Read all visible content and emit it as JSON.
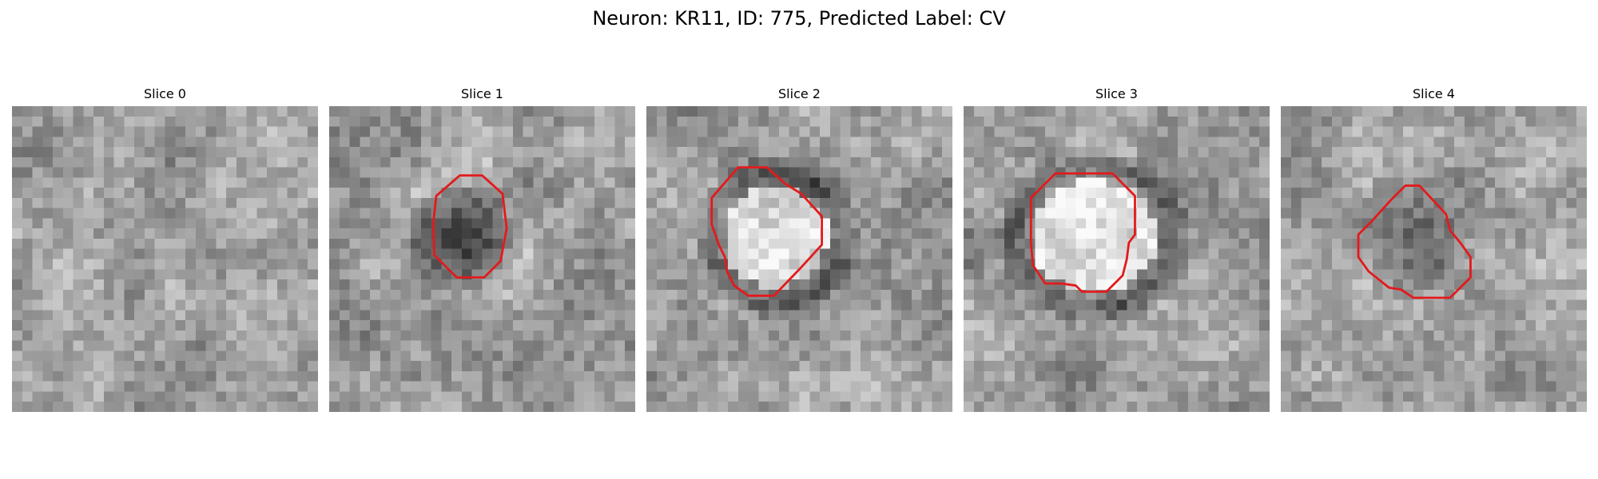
{
  "title": "Neuron: KR11, ID: 775, Predicted Label: CV",
  "contour_color": "#e31a1c",
  "slices": [
    {
      "label": "Slice 0",
      "seed": 11,
      "has_contour": false,
      "pattern": "noise"
    },
    {
      "label": "Slice 1",
      "seed": 23,
      "has_contour": true,
      "pattern": "dark-blob"
    },
    {
      "label": "Slice 2",
      "seed": 37,
      "has_contour": true,
      "pattern": "bright-ring"
    },
    {
      "label": "Slice 3",
      "seed": 41,
      "has_contour": true,
      "pattern": "bright-ring-large"
    },
    {
      "label": "Slice 4",
      "seed": 53,
      "has_contour": true,
      "pattern": "mixed-blob"
    }
  ]
}
